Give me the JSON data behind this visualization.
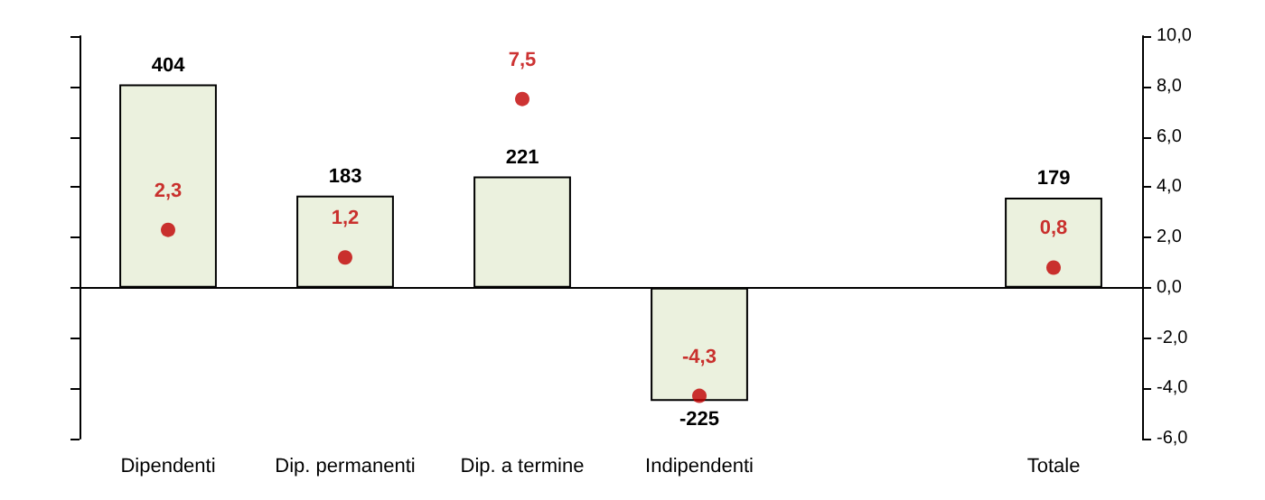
{
  "chart_data": {
    "type": "bar",
    "categories": [
      "Dipendenti",
      "Dip. permanenti",
      "Dip. a termine",
      "Indipendenti",
      null,
      "Totale"
    ],
    "series": [
      {
        "color": "#ebf1de",
        "values": [
          404,
          183,
          221,
          -225,
          null,
          179
        ],
        "value_labels": [
          "404",
          "183",
          "221",
          "-225",
          null,
          "179"
        ]
      },
      {
        "type": "scatter",
        "axis": "y2",
        "color": "#c00000",
        "values": [
          2.3,
          1.2,
          7.5,
          -4.3,
          null,
          0.8
        ],
        "value_labels": [
          "2,3",
          "1,2",
          "7,5",
          "-4,3",
          null,
          "0,8"
        ]
      }
    ],
    "ylim": [
      -300,
      500
    ],
    "y2lim": [
      -6,
      10
    ],
    "y2ticks": [
      {
        "value": -6,
        "label": "-6,0"
      },
      {
        "value": -4,
        "label": "-4,0"
      },
      {
        "value": -2,
        "label": "-2,0"
      },
      {
        "value": 0,
        "label": "0,0"
      },
      {
        "value": 2,
        "label": "2,0"
      },
      {
        "value": 4,
        "label": "4,0"
      },
      {
        "value": 6,
        "label": "6,0"
      },
      {
        "value": 8,
        "label": "8,0"
      },
      {
        "value": 10,
        "label": "10,0"
      }
    ],
    "marker": "circle",
    "grid": false
  }
}
